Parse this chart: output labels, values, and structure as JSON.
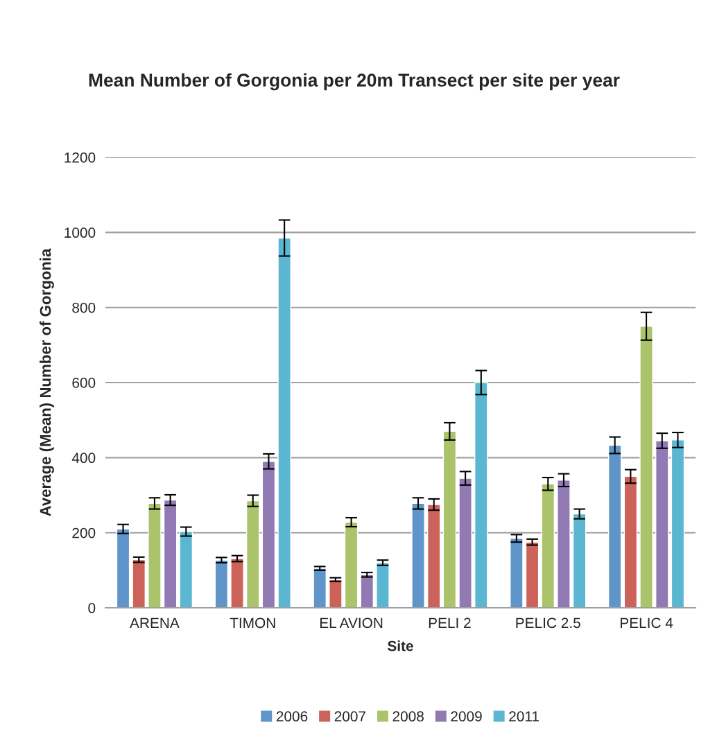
{
  "chart_data": {
    "type": "bar",
    "title": "Mean Number of Gorgonia per 20m Transect per site per year",
    "xlabel": "Site",
    "ylabel": "Average (Mean) Number of Gorgonia",
    "categories": [
      "ARENA",
      "TIMON",
      "EL AVION",
      "PELI 2",
      "PELIC 2.5",
      "PELIC 4"
    ],
    "series": [
      {
        "name": "2006",
        "color": "#5f95c8",
        "values": [
          210,
          127,
          105,
          278,
          185,
          433
        ],
        "errors": [
          12,
          7,
          5,
          15,
          10,
          22
        ]
      },
      {
        "name": "2007",
        "color": "#cd625a",
        "values": [
          128,
          131,
          75,
          275,
          175,
          350
        ],
        "errors": [
          7,
          8,
          5,
          15,
          8,
          18
        ]
      },
      {
        "name": "2008",
        "color": "#abc46b",
        "values": [
          278,
          285,
          228,
          470,
          330,
          750
        ],
        "errors": [
          15,
          15,
          12,
          23,
          17,
          37
        ]
      },
      {
        "name": "2009",
        "color": "#9179b4",
        "values": [
          287,
          390,
          88,
          345,
          340,
          445
        ],
        "errors": [
          14,
          20,
          6,
          18,
          17,
          20
        ]
      },
      {
        "name": "2011",
        "color": "#5bb7d1",
        "values": [
          203,
          985,
          120,
          600,
          250,
          447
        ],
        "errors": [
          12,
          48,
          7,
          32,
          13,
          20
        ]
      }
    ],
    "ylim": [
      0,
      1200
    ],
    "yticks": [
      0,
      200,
      400,
      600,
      800,
      1000,
      1200
    ],
    "grid": "y",
    "legend": "bottom"
  }
}
